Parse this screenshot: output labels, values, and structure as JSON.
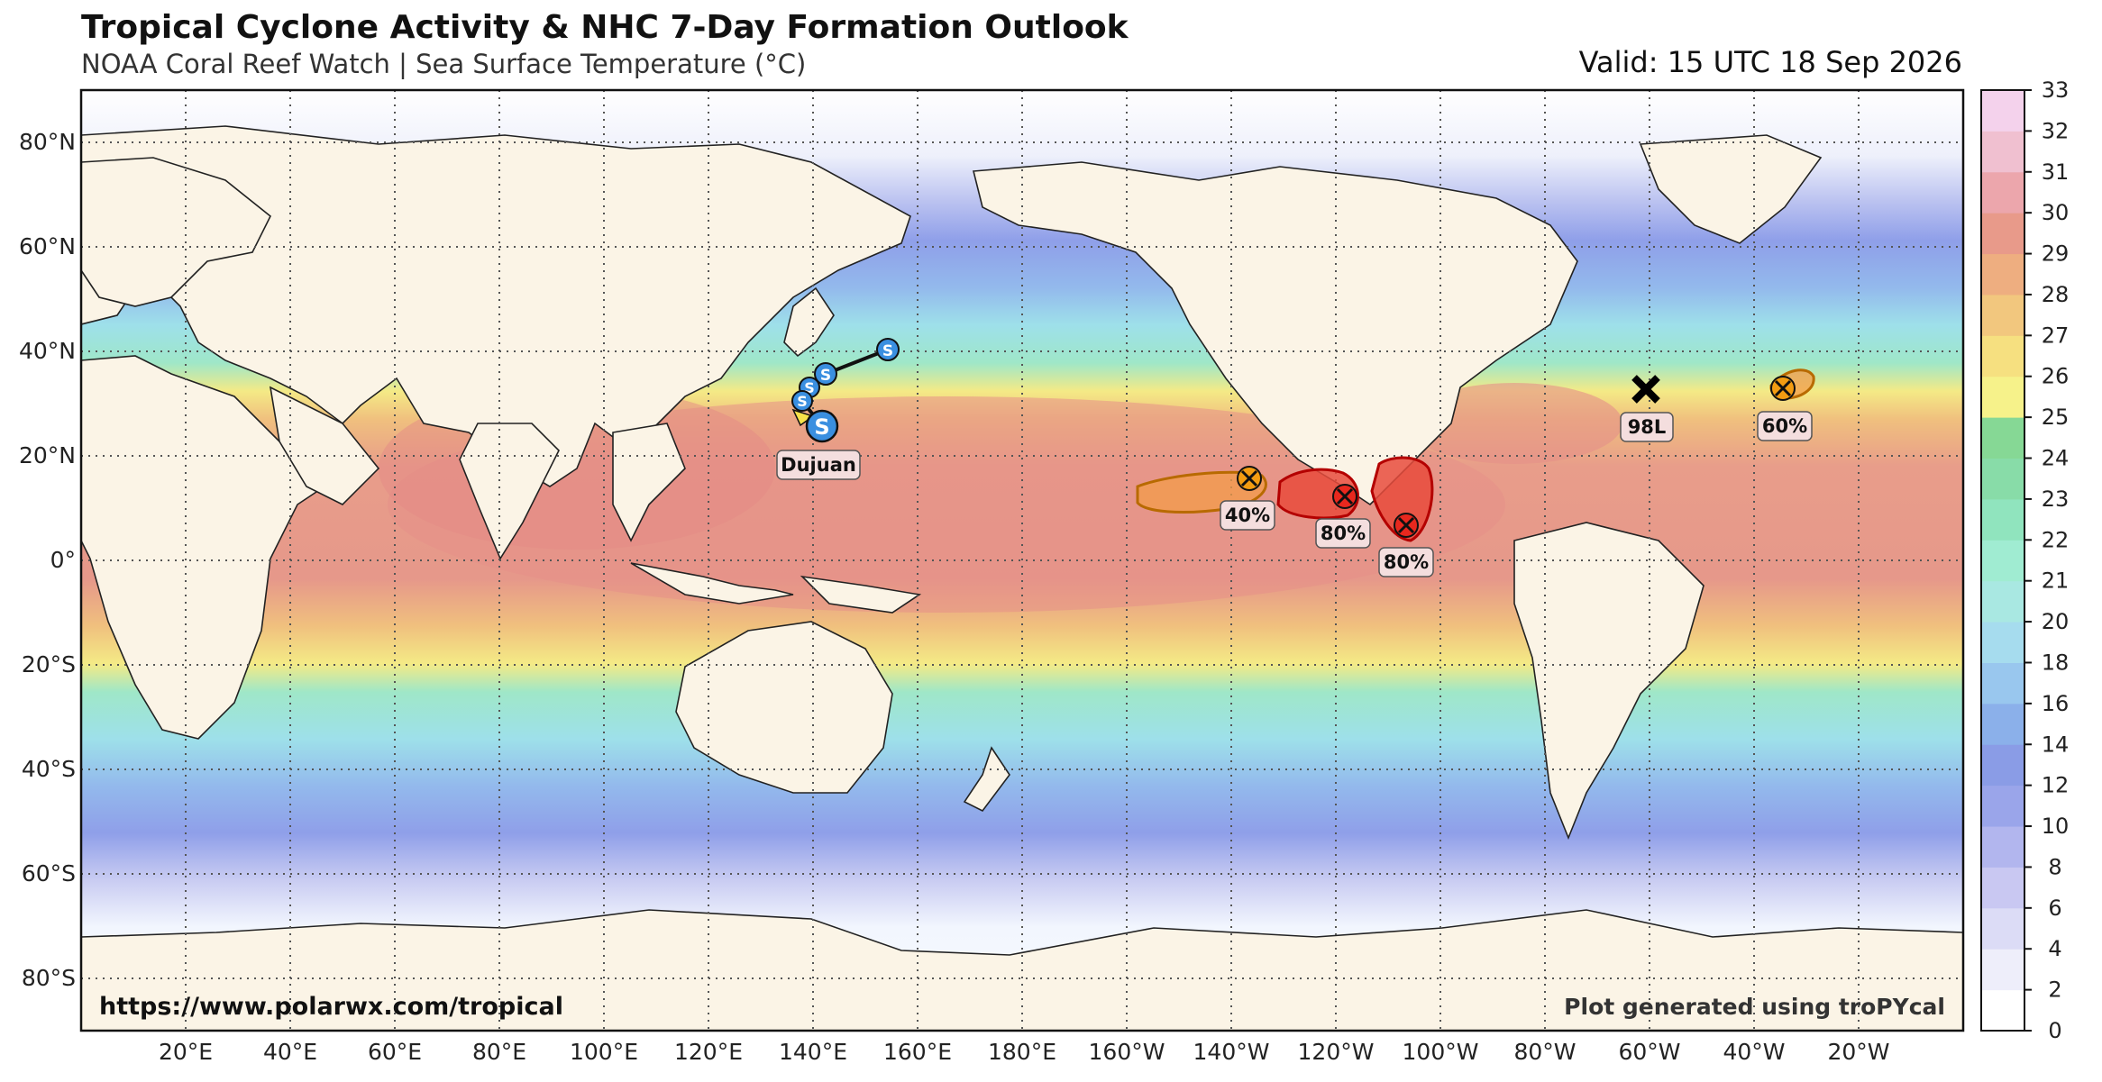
{
  "header": {
    "title": "Tropical Cyclone Activity & NHC 7-Day Formation Outlook",
    "subtitle": "NOAA Coral Reef Watch | Sea Surface Temperature (°C)",
    "valid": "Valid: 15 UTC 18 Sep 2026"
  },
  "map": {
    "lat_labels": [
      "80°N",
      "60°N",
      "40°N",
      "20°N",
      "0°",
      "20°S",
      "40°S",
      "60°S",
      "80°S"
    ],
    "lon_labels": [
      "20°E",
      "40°E",
      "60°E",
      "80°E",
      "100°E",
      "120°E",
      "140°E",
      "160°E",
      "180°E",
      "160°W",
      "140°W",
      "120°W",
      "100°W",
      "80°W",
      "60°W",
      "40°W",
      "20°W"
    ],
    "credit_url": "https://www.polarwx.com/tropical",
    "credit_tool": "Plot generated using troPYcal"
  },
  "storms": [
    {
      "name": "Dujuan",
      "type": "subtropical storm",
      "marker": "S",
      "color": "#3a8fe0"
    }
  ],
  "outlooks": [
    {
      "label": "40%",
      "color": "#f39c12"
    },
    {
      "label": "80%",
      "color": "#e8281e"
    },
    {
      "label": "80%",
      "color": "#e8281e"
    },
    {
      "label": "98L",
      "color": "#000000"
    },
    {
      "label": "60%",
      "color": "#f39c12"
    }
  ],
  "colorbar": {
    "unit": "°C",
    "ticks": [
      "0",
      "2",
      "4",
      "6",
      "8",
      "10",
      "12",
      "14",
      "16",
      "18",
      "20",
      "21",
      "22",
      "23",
      "24",
      "25",
      "26",
      "27",
      "28",
      "29",
      "30",
      "31",
      "32",
      "33"
    ],
    "colors": [
      "#ffffff",
      "#eeeefa",
      "#dcdcf6",
      "#c9c8f2",
      "#b2b6ee",
      "#9aa5ea",
      "#8a9ce6",
      "#8bb0ea",
      "#99c7ee",
      "#a6dcee",
      "#a9e8e2",
      "#a0ecd2",
      "#90e4be",
      "#88dca8",
      "#86d895",
      "#f6f28a",
      "#f6e080",
      "#f2c77e",
      "#eeae80",
      "#e89a8a",
      "#eca6ac",
      "#f0c0d0",
      "#f4d2ec"
    ]
  }
}
